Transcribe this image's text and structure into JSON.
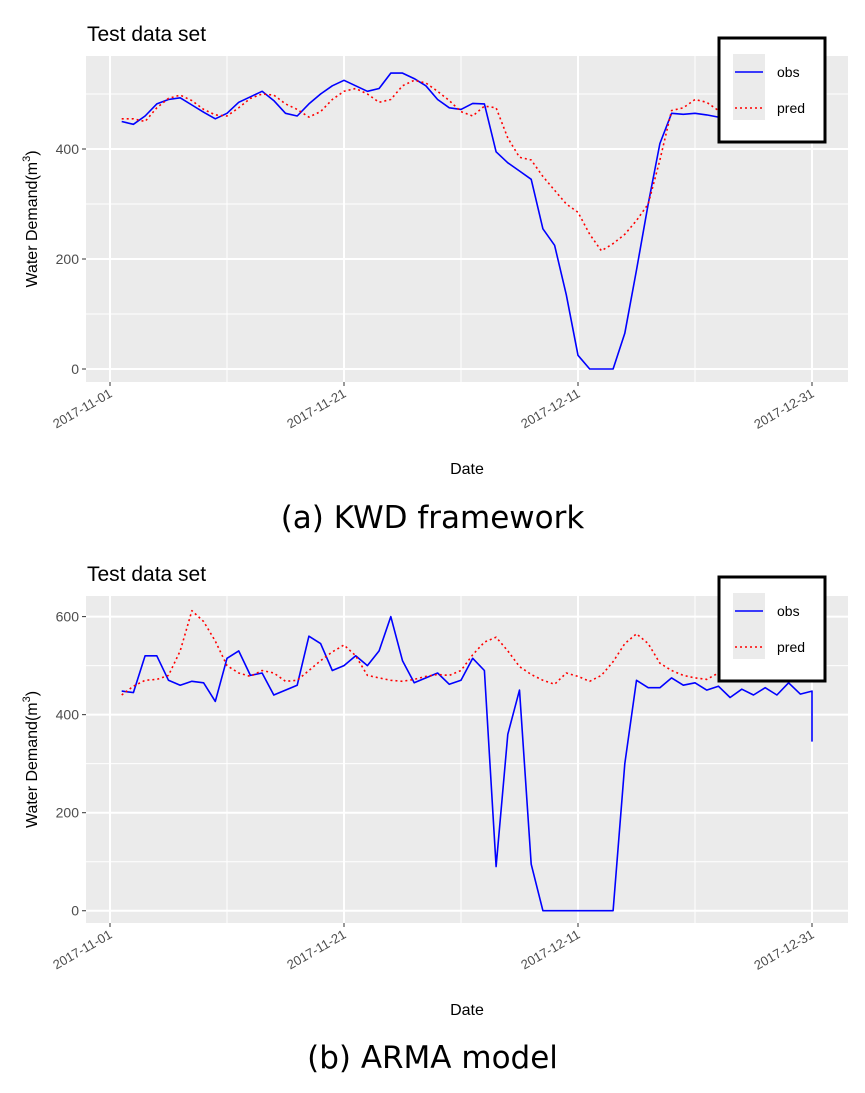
{
  "figures": {
    "a": {
      "caption": "(a) KWD framework"
    },
    "b": {
      "caption": "(b) ARMA model"
    }
  },
  "colors": {
    "obs": "#0000ff",
    "pred": "#ff0000",
    "panel": "#ebebeb",
    "grid": "#ffffff"
  },
  "chart_data": [
    {
      "type": "line",
      "title": "Test data set",
      "xlabel": "Date",
      "ylabel": "Water Demand(m",
      "ylabel_superscript": "3",
      "ylabel_suffix": ")",
      "x_ticks": [
        "2017-11-01",
        "2017-11-21",
        "2017-12-11",
        "2017-12-31"
      ],
      "y_ticks": [
        0,
        200,
        400
      ],
      "xlim": [
        "2017-11-01",
        "2017-12-31"
      ],
      "ylim": [
        -20,
        560
      ],
      "grid": true,
      "legend": {
        "position": "top-right",
        "entries": [
          "obs",
          "pred"
        ]
      },
      "series": [
        {
          "name": "obs",
          "style": "solid",
          "points": [
            [
              "2017-11-02",
              450
            ],
            [
              "2017-11-03",
              445
            ],
            [
              "2017-11-04",
              460
            ],
            [
              "2017-11-05",
              482
            ],
            [
              "2017-11-06",
              490
            ],
            [
              "2017-11-07",
              493
            ],
            [
              "2017-11-08",
              480
            ],
            [
              "2017-11-09",
              467
            ],
            [
              "2017-11-10",
              455
            ],
            [
              "2017-11-11",
              465
            ],
            [
              "2017-11-12",
              485
            ],
            [
              "2017-11-13",
              495
            ],
            [
              "2017-11-14",
              505
            ],
            [
              "2017-11-15",
              488
            ],
            [
              "2017-11-16",
              465
            ],
            [
              "2017-11-17",
              460
            ],
            [
              "2017-11-18",
              482
            ],
            [
              "2017-11-19",
              500
            ],
            [
              "2017-11-20",
              515
            ],
            [
              "2017-11-21",
              525
            ],
            [
              "2017-11-22",
              515
            ],
            [
              "2017-11-23",
              505
            ],
            [
              "2017-11-24",
              510
            ],
            [
              "2017-11-25",
              538
            ],
            [
              "2017-11-26",
              538
            ],
            [
              "2017-11-27",
              528
            ],
            [
              "2017-11-28",
              515
            ],
            [
              "2017-11-29",
              490
            ],
            [
              "2017-11-30",
              475
            ],
            [
              "2017-12-01",
              472
            ],
            [
              "2017-12-02",
              483
            ],
            [
              "2017-12-03",
              482
            ],
            [
              "2017-12-04",
              395
            ],
            [
              "2017-12-05",
              375
            ],
            [
              "2017-12-06",
              360
            ],
            [
              "2017-12-07",
              345
            ],
            [
              "2017-12-08",
              255
            ],
            [
              "2017-12-09",
              225
            ],
            [
              "2017-12-10",
              135
            ],
            [
              "2017-12-11",
              25
            ],
            [
              "2017-12-12",
              0
            ],
            [
              "2017-12-13",
              0
            ],
            [
              "2017-12-14",
              0
            ],
            [
              "2017-12-15",
              65
            ],
            [
              "2017-12-16",
              180
            ],
            [
              "2017-12-17",
              300
            ],
            [
              "2017-12-18",
              410
            ],
            [
              "2017-12-19",
              465
            ],
            [
              "2017-12-20",
              463
            ],
            [
              "2017-12-21",
              465
            ],
            [
              "2017-12-22",
              462
            ],
            [
              "2017-12-23",
              458
            ],
            [
              "2017-12-24",
              455
            ]
          ]
        },
        {
          "name": "pred",
          "style": "dotted",
          "points": [
            [
              "2017-11-02",
              455
            ],
            [
              "2017-11-03",
              455
            ],
            [
              "2017-11-04",
              450
            ],
            [
              "2017-11-05",
              475
            ],
            [
              "2017-11-06",
              492
            ],
            [
              "2017-11-07",
              498
            ],
            [
              "2017-11-08",
              488
            ],
            [
              "2017-11-09",
              472
            ],
            [
              "2017-11-10",
              462
            ],
            [
              "2017-11-11",
              460
            ],
            [
              "2017-11-12",
              475
            ],
            [
              "2017-11-13",
              492
            ],
            [
              "2017-11-14",
              500
            ],
            [
              "2017-11-15",
              498
            ],
            [
              "2017-11-16",
              482
            ],
            [
              "2017-11-17",
              472
            ],
            [
              "2017-11-18",
              458
            ],
            [
              "2017-11-19",
              468
            ],
            [
              "2017-11-20",
              490
            ],
            [
              "2017-11-21",
              505
            ],
            [
              "2017-11-22",
              510
            ],
            [
              "2017-11-23",
              500
            ],
            [
              "2017-11-24",
              485
            ],
            [
              "2017-11-25",
              490
            ],
            [
              "2017-11-26",
              515
            ],
            [
              "2017-11-27",
              525
            ],
            [
              "2017-11-28",
              520
            ],
            [
              "2017-11-29",
              505
            ],
            [
              "2017-11-30",
              488
            ],
            [
              "2017-12-01",
              468
            ],
            [
              "2017-12-02",
              460
            ],
            [
              "2017-12-03",
              478
            ],
            [
              "2017-12-04",
              475
            ],
            [
              "2017-12-05",
              420
            ],
            [
              "2017-12-06",
              385
            ],
            [
              "2017-12-07",
              380
            ],
            [
              "2017-12-08",
              350
            ],
            [
              "2017-12-09",
              325
            ],
            [
              "2017-12-10",
              300
            ],
            [
              "2017-12-11",
              285
            ],
            [
              "2017-12-12",
              245
            ],
            [
              "2017-12-13",
              215
            ],
            [
              "2017-12-14",
              228
            ],
            [
              "2017-12-15",
              245
            ],
            [
              "2017-12-16",
              270
            ],
            [
              "2017-12-17",
              300
            ],
            [
              "2017-12-18",
              380
            ],
            [
              "2017-12-19",
              470
            ],
            [
              "2017-12-20",
              475
            ],
            [
              "2017-12-21",
              490
            ],
            [
              "2017-12-22",
              485
            ],
            [
              "2017-12-23",
              470
            ],
            [
              "2017-12-24",
              460
            ]
          ]
        }
      ]
    },
    {
      "type": "line",
      "title": "Test data set",
      "xlabel": "Date",
      "ylabel": "Water Demand(m",
      "ylabel_superscript": "3",
      "ylabel_suffix": ")",
      "x_ticks": [
        "2017-11-01",
        "2017-11-21",
        "2017-12-11",
        "2017-12-31"
      ],
      "y_ticks": [
        0,
        200,
        400,
        600
      ],
      "xlim": [
        "2017-11-01",
        "2017-12-31"
      ],
      "ylim": [
        -25,
        640
      ],
      "grid": true,
      "legend": {
        "position": "top-right",
        "entries": [
          "obs",
          "pred"
        ]
      },
      "series": [
        {
          "name": "obs",
          "style": "solid",
          "points": [
            [
              "2017-11-02",
              448
            ],
            [
              "2017-11-03",
              445
            ],
            [
              "2017-11-04",
              520
            ],
            [
              "2017-11-05",
              520
            ],
            [
              "2017-11-06",
              470
            ],
            [
              "2017-11-07",
              460
            ],
            [
              "2017-11-08",
              468
            ],
            [
              "2017-11-09",
              465
            ],
            [
              "2017-11-10",
              427
            ],
            [
              "2017-11-11",
              515
            ],
            [
              "2017-11-12",
              530
            ],
            [
              "2017-11-13",
              480
            ],
            [
              "2017-11-14",
              485
            ],
            [
              "2017-11-15",
              440
            ],
            [
              "2017-11-16",
              450
            ],
            [
              "2017-11-17",
              460
            ],
            [
              "2017-11-18",
              560
            ],
            [
              "2017-11-19",
              545
            ],
            [
              "2017-11-20",
              490
            ],
            [
              "2017-11-21",
              500
            ],
            [
              "2017-11-22",
              520
            ],
            [
              "2017-11-23",
              500
            ],
            [
              "2017-11-24",
              530
            ],
            [
              "2017-11-25",
              600
            ],
            [
              "2017-11-26",
              510
            ],
            [
              "2017-11-27",
              465
            ],
            [
              "2017-11-28",
              475
            ],
            [
              "2017-11-29",
              485
            ],
            [
              "2017-11-30",
              462
            ],
            [
              "2017-12-01",
              470
            ],
            [
              "2017-12-02",
              515
            ],
            [
              "2017-12-03",
              490
            ],
            [
              "2017-12-04",
              90
            ],
            [
              "2017-12-05",
              360
            ],
            [
              "2017-12-06",
              450
            ],
            [
              "2017-12-07",
              95
            ],
            [
              "2017-12-08",
              0
            ],
            [
              "2017-12-09",
              0
            ],
            [
              "2017-12-10",
              0
            ],
            [
              "2017-12-11",
              0
            ],
            [
              "2017-12-12",
              0
            ],
            [
              "2017-12-13",
              0
            ],
            [
              "2017-12-14",
              0
            ],
            [
              "2017-12-15",
              300
            ],
            [
              "2017-12-16",
              470
            ],
            [
              "2017-12-17",
              455
            ],
            [
              "2017-12-18",
              455
            ],
            [
              "2017-12-19",
              475
            ],
            [
              "2017-12-20",
              460
            ],
            [
              "2017-12-21",
              465
            ],
            [
              "2017-12-22",
              450
            ],
            [
              "2017-12-23",
              458
            ],
            [
              "2017-12-24",
              435
            ],
            [
              "2017-12-25",
              452
            ],
            [
              "2017-12-26",
              440
            ],
            [
              "2017-12-27",
              455
            ],
            [
              "2017-12-28",
              440
            ],
            [
              "2017-12-29",
              465
            ],
            [
              "2017-12-30",
              442
            ],
            [
              "2017-12-31",
              448
            ],
            [
              "2017-12-31",
              345
            ]
          ]
        },
        {
          "name": "pred",
          "style": "dotted",
          "points": [
            [
              "2017-11-02",
              440
            ],
            [
              "2017-11-03",
              458
            ],
            [
              "2017-11-04",
              470
            ],
            [
              "2017-11-05",
              472
            ],
            [
              "2017-11-06",
              480
            ],
            [
              "2017-11-07",
              530
            ],
            [
              "2017-11-08",
              612
            ],
            [
              "2017-11-09",
              590
            ],
            [
              "2017-11-10",
              550
            ],
            [
              "2017-11-11",
              500
            ],
            [
              "2017-11-12",
              485
            ],
            [
              "2017-11-13",
              478
            ],
            [
              "2017-11-14",
              490
            ],
            [
              "2017-11-15",
              485
            ],
            [
              "2017-11-16",
              468
            ],
            [
              "2017-11-17",
              470
            ],
            [
              "2017-11-18",
              490
            ],
            [
              "2017-11-19",
              510
            ],
            [
              "2017-11-20",
              528
            ],
            [
              "2017-11-21",
              542
            ],
            [
              "2017-11-22",
              520
            ],
            [
              "2017-11-23",
              480
            ],
            [
              "2017-11-24",
              475
            ],
            [
              "2017-11-25",
              470
            ],
            [
              "2017-11-26",
              468
            ],
            [
              "2017-11-27",
              472
            ],
            [
              "2017-11-28",
              478
            ],
            [
              "2017-11-29",
              482
            ],
            [
              "2017-11-30",
              480
            ],
            [
              "2017-12-01",
              490
            ],
            [
              "2017-12-02",
              522
            ],
            [
              "2017-12-03",
              548
            ],
            [
              "2017-12-04",
              558
            ],
            [
              "2017-12-05",
              530
            ],
            [
              "2017-12-06",
              498
            ],
            [
              "2017-12-07",
              482
            ],
            [
              "2017-12-08",
              470
            ],
            [
              "2017-12-09",
              462
            ],
            [
              "2017-12-10",
              485
            ],
            [
              "2017-12-11",
              478
            ],
            [
              "2017-12-12",
              468
            ],
            [
              "2017-12-13",
              480
            ],
            [
              "2017-12-14",
              508
            ],
            [
              "2017-12-15",
              545
            ],
            [
              "2017-12-16",
              565
            ],
            [
              "2017-12-17",
              545
            ],
            [
              "2017-12-18",
              505
            ],
            [
              "2017-12-19",
              490
            ],
            [
              "2017-12-20",
              480
            ],
            [
              "2017-12-21",
              475
            ],
            [
              "2017-12-22",
              472
            ],
            [
              "2017-12-23",
              485
            ],
            [
              "2017-12-24",
              480
            ],
            [
              "2017-12-25",
              470
            ]
          ]
        }
      ]
    }
  ]
}
